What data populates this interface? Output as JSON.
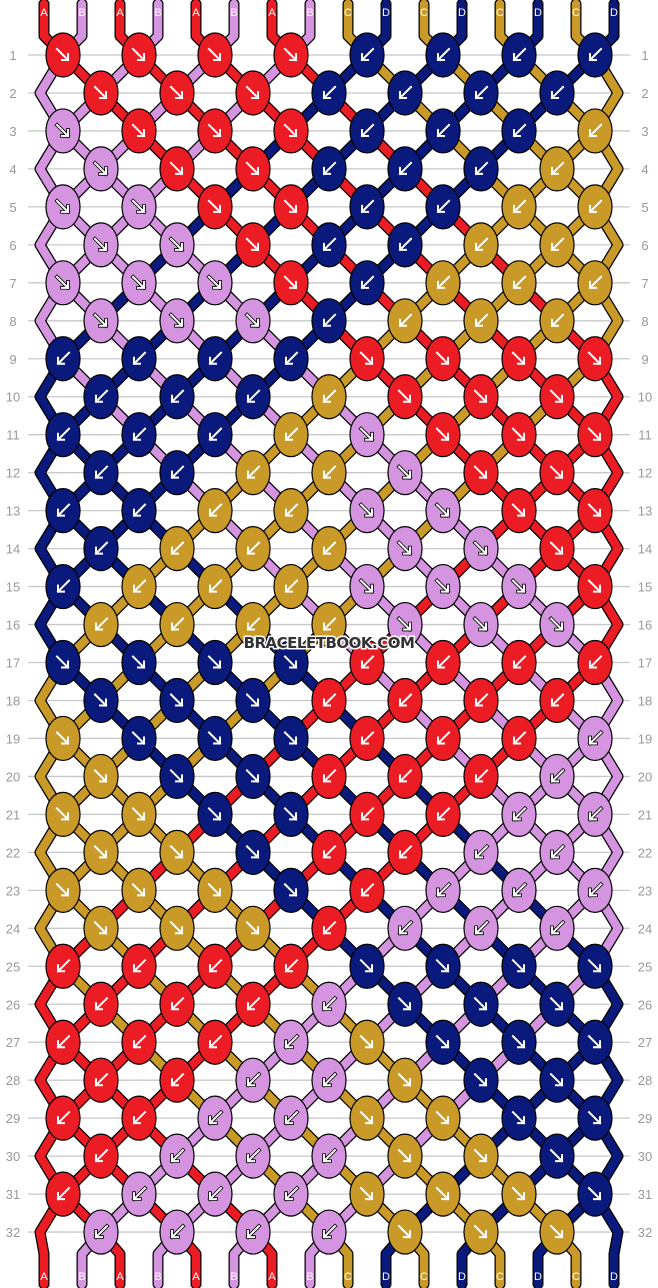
{
  "colors": {
    "A": "#ec1c24",
    "B": "#d594e0",
    "C": "#c99a27",
    "D": "#0a1a7c"
  },
  "strings_top": [
    "A",
    "B",
    "A",
    "B",
    "A",
    "B",
    "A",
    "B",
    "C",
    "D",
    "C",
    "D",
    "C",
    "D",
    "C",
    "D"
  ],
  "strings_bottom": [
    "A",
    "B",
    "A",
    "B",
    "A",
    "B",
    "A",
    "B",
    "C",
    "D",
    "C",
    "D",
    "C",
    "D",
    "C",
    "D"
  ],
  "watermark": "BRACELETBOOK.COM",
  "arrow_legend": {
    ">": "forward ↘",
    "<": "backward ↙"
  },
  "rows": [
    "A> A> A> A> D< D< D< D<",
    "A> A> A> D< D< D< D<",
    "B> A> A> A> D< D< D< C<",
    "B> A> A> D< D< D< C<",
    "B> B> A> A> D< D< C< C<",
    "B> B> A> D< D< C< C<",
    "B> B> B> A> D< C< C< C<",
    "B> B> B> D< C< C< C<",
    "D< D< D< D< A> A> A> A>",
    "D< D< D< C< A> A> A>",
    "D< D< D< C< B> A> A> A>",
    "D< D< C< C< B> A> A>",
    "D< D< C< C< B> B> A> A>",
    "D< C< C< C< B> B> A>",
    "D< C< C< C< B> B> B> A>",
    "C< C< C< C< B> B> B>",
    "D> D> D> D> A< A< A< A<",
    "D> D> D> A< A< A< A<",
    "C> D> D> D> A< A< A< B<",
    "C> D> D> A< A< A< B<",
    "C> C> D> D> A< A< B< B<",
    "C> C> D> A< A< B< B<",
    "C> C> C> D> A< B< B< B<",
    "C> C> C> A< B< B< B<",
    "A< A< A< A< D> D> D> D>",
    "A< A< A< B< D> D> D>",
    "A< A< A< B< C> D> D> D>",
    "A< A< B< B< C> D> D>",
    "A< A< B< B< C> C> D> D>",
    "A< B< B< B< C> C> D>",
    "A< B< B< B< C> C> C> D>",
    "B< B< B< B< C> C> C>"
  ]
}
